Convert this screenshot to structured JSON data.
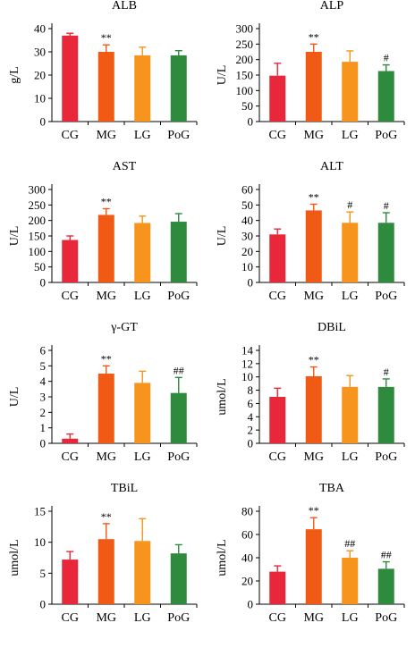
{
  "colors": {
    "CG": "#e8283a",
    "MG": "#f05a14",
    "LG": "#f7941d",
    "PoG": "#2e8b3e",
    "axis": "#000000"
  },
  "chart_data": [
    {
      "type": "bar",
      "title": "ALB",
      "ylabel": "g/L",
      "categories": [
        "CG",
        "MG",
        "LG",
        "PoG"
      ],
      "values": [
        37,
        30,
        28.5,
        28.5
      ],
      "errors": [
        1,
        3,
        3.5,
        2
      ],
      "annotations": [
        "",
        "**",
        "",
        ""
      ],
      "ylim": [
        0,
        40
      ],
      "yticks": [
        0,
        10,
        20,
        30,
        40
      ]
    },
    {
      "type": "bar",
      "title": "ALP",
      "ylabel": "U/L",
      "categories": [
        "CG",
        "MG",
        "LG",
        "PoG"
      ],
      "values": [
        148,
        225,
        193,
        163
      ],
      "errors": [
        40,
        25,
        35,
        20
      ],
      "annotations": [
        "",
        "**",
        "",
        "#"
      ],
      "ylim": [
        0,
        300
      ],
      "yticks": [
        0,
        50,
        100,
        150,
        200,
        250,
        300
      ]
    },
    {
      "type": "bar",
      "title": "AST",
      "ylabel": "U/L",
      "categories": [
        "CG",
        "MG",
        "LG",
        "PoG"
      ],
      "values": [
        137,
        218,
        192,
        196
      ],
      "errors": [
        13,
        20,
        22,
        26
      ],
      "annotations": [
        "",
        "**",
        "",
        ""
      ],
      "ylim": [
        0,
        300
      ],
      "yticks": [
        0,
        50,
        100,
        150,
        200,
        250,
        300
      ]
    },
    {
      "type": "bar",
      "title": "ALT",
      "ylabel": "U/L",
      "categories": [
        "CG",
        "MG",
        "LG",
        "PoG"
      ],
      "values": [
        31,
        46.5,
        38.5,
        38.5
      ],
      "errors": [
        3.5,
        4,
        7,
        6.5
      ],
      "annotations": [
        "",
        "**",
        "#",
        "#"
      ],
      "ylim": [
        0,
        60
      ],
      "yticks": [
        0,
        10,
        20,
        30,
        40,
        50,
        60
      ]
    },
    {
      "type": "bar",
      "title": "γ-GT",
      "ylabel": "U/L",
      "categories": [
        "CG",
        "MG",
        "LG",
        "PoG"
      ],
      "values": [
        0.3,
        4.5,
        3.9,
        3.25
      ],
      "errors": [
        0.3,
        0.5,
        0.75,
        1
      ],
      "annotations": [
        "",
        "**",
        "",
        "##"
      ],
      "ylim": [
        0,
        6
      ],
      "yticks": [
        0,
        1,
        2,
        3,
        4,
        5,
        6
      ]
    },
    {
      "type": "bar",
      "title": "DBiL",
      "ylabel": "umol/L",
      "categories": [
        "CG",
        "MG",
        "LG",
        "PoG"
      ],
      "values": [
        7,
        10.1,
        8.5,
        8.5
      ],
      "errors": [
        1.3,
        1.4,
        1.7,
        1.2
      ],
      "annotations": [
        "",
        "**",
        "",
        "#"
      ],
      "ylim": [
        0,
        14
      ],
      "yticks": [
        0,
        2,
        4,
        6,
        8,
        10,
        12,
        14
      ]
    },
    {
      "type": "bar",
      "title": "TBiL",
      "ylabel": "umol/L",
      "categories": [
        "CG",
        "MG",
        "LG",
        "PoG"
      ],
      "values": [
        7.2,
        10.5,
        10.2,
        8.2
      ],
      "errors": [
        1.3,
        2.5,
        3.6,
        1.4
      ],
      "annotations": [
        "",
        "**",
        "",
        ""
      ],
      "ylim": [
        0,
        15
      ],
      "yticks": [
        0,
        5,
        10,
        15
      ]
    },
    {
      "type": "bar",
      "title": "TBA",
      "ylabel": "umol/L",
      "categories": [
        "CG",
        "MG",
        "LG",
        "PoG"
      ],
      "values": [
        28,
        64.5,
        40,
        30.5
      ],
      "errors": [
        5,
        10,
        6,
        6
      ],
      "annotations": [
        "",
        "**",
        "##",
        "##"
      ],
      "ylim": [
        0,
        80
      ],
      "yticks": [
        0,
        20,
        40,
        60,
        80
      ]
    }
  ]
}
